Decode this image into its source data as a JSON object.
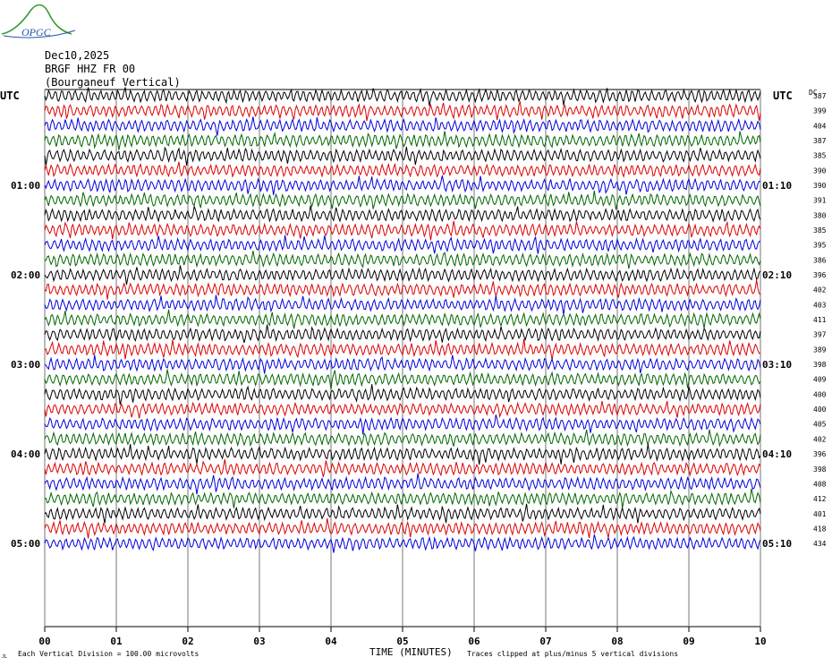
{
  "logo": {
    "text": "OPGC"
  },
  "header": {
    "date": "Dec10,2025",
    "station": "BRGF HHZ FR 00",
    "location": "(Bourganeuf Vertical)"
  },
  "left_axis_title": "UTC",
  "right_axis_title": "UTC",
  "dc_header": "DC",
  "left_time_labels": [
    "01:00",
    "02:00",
    "03:00",
    "04:00",
    "05:00"
  ],
  "right_time_labels": [
    "01:10",
    "02:10",
    "03:10",
    "04:10",
    "05:10"
  ],
  "colors": [
    "#000000",
    "#dd0000",
    "#0000dd",
    "#006600"
  ],
  "footer": {
    "vertical_division": "Each Vertical Division =  100.00 microvolts",
    "xlabel": "TIME (MINUTES)",
    "clip_note": "Traces clipped at plus/minus 5 vertical divisions",
    "corner_mark": "JL"
  },
  "chart_data": {
    "type": "line",
    "xlabel": "TIME (MINUTES)",
    "x_ticks": [
      "00",
      "01",
      "02",
      "03",
      "04",
      "05",
      "06",
      "07",
      "08",
      "09",
      "10"
    ],
    "xlim": [
      0,
      10
    ],
    "rows_per_hour": 6,
    "row_duration_minutes": 10,
    "traces": [
      {
        "dc": 387
      },
      {
        "dc": 399
      },
      {
        "dc": 404
      },
      {
        "dc": 387
      },
      {
        "dc": 385
      },
      {
        "dc": 390
      },
      {
        "dc": 390
      },
      {
        "dc": 391
      },
      {
        "dc": 380
      },
      {
        "dc": 385
      },
      {
        "dc": 395
      },
      {
        "dc": 386
      },
      {
        "dc": 396
      },
      {
        "dc": 402
      },
      {
        "dc": 403
      },
      {
        "dc": 411
      },
      {
        "dc": 397
      },
      {
        "dc": 389
      },
      {
        "dc": 398
      },
      {
        "dc": 409
      },
      {
        "dc": 400
      },
      {
        "dc": 400
      },
      {
        "dc": 405
      },
      {
        "dc": 402
      },
      {
        "dc": 396
      },
      {
        "dc": 398
      },
      {
        "dc": 408
      },
      {
        "dc": 412
      },
      {
        "dc": 401
      },
      {
        "dc": 418
      },
      {
        "dc": 434
      }
    ]
  }
}
